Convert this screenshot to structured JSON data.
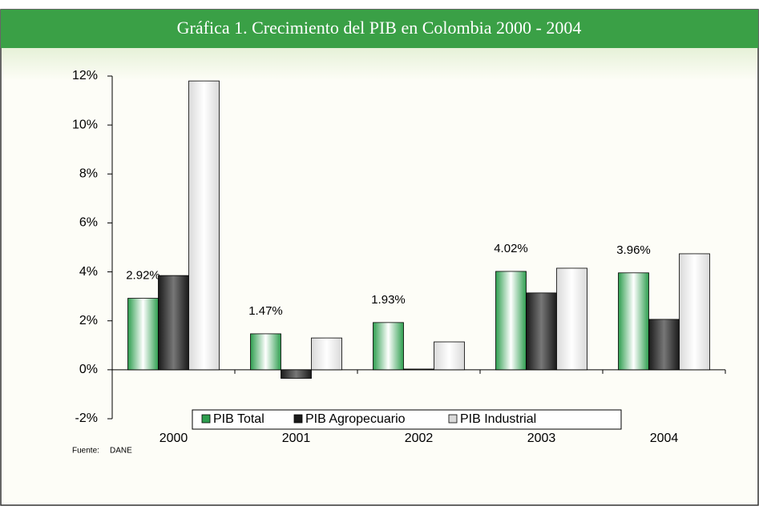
{
  "chart_data": {
    "type": "bar",
    "title": "Gráfica 1. Crecimiento del PIB en Colombia 2000 - 2004",
    "categories": [
      "2000",
      "2001",
      "2002",
      "2003",
      "2004"
    ],
    "series": [
      {
        "name": "PIB Total",
        "color": "#2e9e4f",
        "values": [
          2.92,
          1.47,
          1.93,
          4.02,
          3.96
        ],
        "value_labels": [
          "2.92%",
          "1.47%",
          "1.93%",
          "4.02%",
          "3.96%"
        ]
      },
      {
        "name": "PIB Agropecuario",
        "color": "#1a1a1a",
        "values": [
          3.85,
          -0.35,
          0.03,
          3.14,
          2.06
        ]
      },
      {
        "name": "PIB Industrial",
        "color": "#d9d9d9",
        "values": [
          11.8,
          1.3,
          1.14,
          4.15,
          4.74
        ]
      }
    ],
    "ylim": [
      -2,
      12
    ],
    "yticks": [
      {
        "value": -2,
        "label": "-2%"
      },
      {
        "value": 0,
        "label": "0%"
      },
      {
        "value": 2,
        "label": "2%"
      },
      {
        "value": 4,
        "label": "4%"
      },
      {
        "value": 6,
        "label": "6%"
      },
      {
        "value": 8,
        "label": "8%"
      },
      {
        "value": 10,
        "label": "10%"
      },
      {
        "value": 12,
        "label": "12%"
      }
    ],
    "source_label": "Fuente:",
    "source": "DANE"
  }
}
